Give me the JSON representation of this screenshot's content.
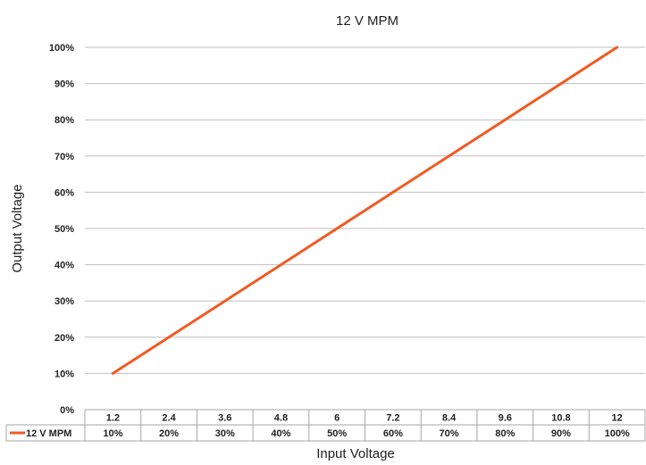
{
  "chart_data": {
    "type": "line",
    "title": "12 V MPM",
    "xlabel": "Input Voltage",
    "ylabel": "Output Voltage",
    "categories": [
      "1.2",
      "2.4",
      "3.6",
      "4.8",
      "6",
      "7.2",
      "8.4",
      "9.6",
      "10.8",
      "12"
    ],
    "y_tick_labels": [
      "0%",
      "10%",
      "20%",
      "30%",
      "40%",
      "50%",
      "60%",
      "70%",
      "80%",
      "90%",
      "100%"
    ],
    "ylim": [
      0,
      1
    ],
    "grid": true,
    "legend": "data table",
    "series": [
      {
        "name": "12 V MPM",
        "color": "#f15a22",
        "values": [
          0.1,
          0.2,
          0.3,
          0.4,
          0.5,
          0.6,
          0.7,
          0.8,
          0.9,
          1.0
        ],
        "labels": [
          "10%",
          "20%",
          "30%",
          "40%",
          "50%",
          "60%",
          "70%",
          "80%",
          "90%",
          "100%"
        ]
      }
    ]
  }
}
